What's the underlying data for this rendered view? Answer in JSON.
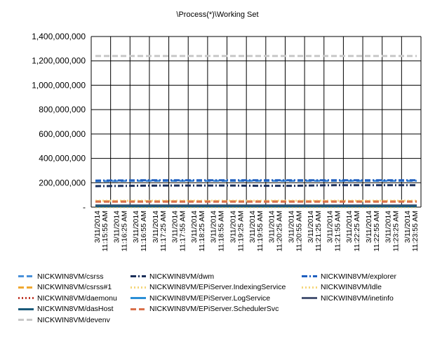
{
  "chart_data": {
    "type": "line",
    "title": "\\Process(*)\\Working Set",
    "xlabel": "",
    "ylabel": "",
    "ylim": [
      0,
      1400000000
    ],
    "yticks": [
      "1,400,000,000",
      "1,200,000,000",
      "1,000,000,000",
      "800,000,000",
      "600,000,000",
      "400,000,000",
      "200,000,000",
      "-"
    ],
    "ytick_values": [
      1400000000,
      1200000000,
      1000000000,
      800000000,
      600000000,
      400000000,
      200000000,
      0
    ],
    "grid": true,
    "legend_position": "bottom",
    "categories": [
      "3/11/2014 11:15:55 AM",
      "3/11/2014 11:16:25 AM",
      "3/11/2014 11:16:55 AM",
      "3/11/2014 11:17:25 AM",
      "3/11/2014 11:17:55 AM",
      "3/11/2014 11:18:25 AM",
      "3/11/2014 11:18:55 AM",
      "3/11/2014 11:19:25 AM",
      "3/11/2014 11:19:55 AM",
      "3/11/2014 11:20:25 AM",
      "3/11/2014 11:20:55 AM",
      "3/11/2014 11:21:25 AM",
      "3/11/2014 11:21:55 AM",
      "3/11/2014 11:22:25 AM",
      "3/11/2014 11:22:55 AM",
      "3/11/2014 11:23:25 AM",
      "3/11/2014 11:23:55 AM"
    ],
    "series": [
      {
        "name": "NICKWIN8VM/csrss",
        "color": "#4a90d9",
        "dash": "dash",
        "values": [
          212000000,
          215000000,
          216000000,
          216000000,
          216000000,
          216000000,
          216000000,
          216000000,
          216000000,
          216000000,
          216000000,
          216000000,
          216000000,
          216000000,
          216000000,
          216000000,
          216000000
        ]
      },
      {
        "name": "NICKWIN8VM/dwm",
        "color": "#1a2f5a",
        "dash": "dashdot",
        "values": [
          172000000,
          174000000,
          176000000,
          177000000,
          177000000,
          177000000,
          177000000,
          177000000,
          175000000,
          175000000,
          175000000,
          178000000,
          180000000,
          180000000,
          180000000,
          180000000,
          180000000
        ]
      },
      {
        "name": "NICKWIN8VM/explorer",
        "color": "#1f5fbf",
        "dash": "dashdot",
        "values": [
          218000000,
          219000000,
          220000000,
          220000000,
          220000000,
          220000000,
          220000000,
          220000000,
          220000000,
          220000000,
          220000000,
          220000000,
          220000000,
          220000000,
          220000000,
          220000000,
          220000000
        ]
      },
      {
        "name": "NICKWIN8VM/csrss#1",
        "color": "#f0a830",
        "dash": "dash",
        "values": [
          48000000,
          48000000,
          48000000,
          48000000,
          48000000,
          48000000,
          48000000,
          48000000,
          48000000,
          48000000,
          48000000,
          48000000,
          48000000,
          48000000,
          48000000,
          48000000,
          48000000
        ]
      },
      {
        "name": "NICKWIN8VM/EPiServer.IndexingService",
        "color": "#f5d67a",
        "dash": "dot",
        "values": [
          52000000,
          52000000,
          52000000,
          52000000,
          52000000,
          52000000,
          52000000,
          52000000,
          52000000,
          52000000,
          52000000,
          52000000,
          52000000,
          52000000,
          52000000,
          52000000,
          52000000
        ]
      },
      {
        "name": "NICKWIN8VM/Idle",
        "color": "#f5d67a",
        "dash": "dot",
        "values": [
          4000,
          4000,
          4000,
          4000,
          4000,
          4000,
          4000,
          4000,
          4000,
          4000,
          4000,
          4000,
          4000,
          4000,
          4000,
          4000,
          4000
        ]
      },
      {
        "name": "NICKWIN8VM/daemonu",
        "color": "#c0392b",
        "dash": "dot",
        "values": [
          9000000,
          9000000,
          9000000,
          9000000,
          9000000,
          9000000,
          9000000,
          9000000,
          9000000,
          9000000,
          9000000,
          9000000,
          9000000,
          9000000,
          9000000,
          9000000,
          9000000
        ]
      },
      {
        "name": "NICKWIN8VM/EPiServer.LogService",
        "color": "#2b8fd6",
        "dash": "solid",
        "values": [
          11000000,
          11000000,
          11000000,
          11000000,
          11000000,
          11000000,
          11000000,
          11000000,
          11000000,
          11000000,
          11000000,
          11000000,
          11000000,
          11000000,
          11000000,
          11000000,
          11000000
        ]
      },
      {
        "name": "NICKWIN8VM/inetinfo",
        "color": "#4a5675",
        "dash": "solid",
        "values": [
          14000000,
          14000000,
          14000000,
          14000000,
          14000000,
          14000000,
          14000000,
          14000000,
          14000000,
          14000000,
          14000000,
          14000000,
          14000000,
          14000000,
          14000000,
          14000000,
          14000000
        ]
      },
      {
        "name": "NICKWIN8VM/dasHost",
        "color": "#1a5a7a",
        "dash": "solid",
        "values": [
          7000000,
          7000000,
          7000000,
          7000000,
          7000000,
          7000000,
          7000000,
          7000000,
          7000000,
          7000000,
          7000000,
          7000000,
          7000000,
          7000000,
          7000000,
          7000000,
          7000000
        ]
      },
      {
        "name": "NICKWIN8VM/EPiServer.SchedulerSvc",
        "color": "#d9704a",
        "dash": "dash",
        "values": [
          45000000,
          45000000,
          45000000,
          45000000,
          45000000,
          45000000,
          45000000,
          45000000,
          45000000,
          45000000,
          45000000,
          45000000,
          45000000,
          45000000,
          45000000,
          45000000,
          45000000
        ]
      },
      {
        "name": "NICKWIN8VM/devenv",
        "color": "#c8c8c8",
        "dash": "dash",
        "values": [
          1240000000,
          1240000000,
          1240000000,
          1240000000,
          1240000000,
          1240000000,
          1240000000,
          1240000000,
          1240000000,
          1240000000,
          1240000000,
          1240000000,
          1240000000,
          1240000000,
          1240000000,
          1240000000,
          1240000000
        ]
      }
    ]
  }
}
